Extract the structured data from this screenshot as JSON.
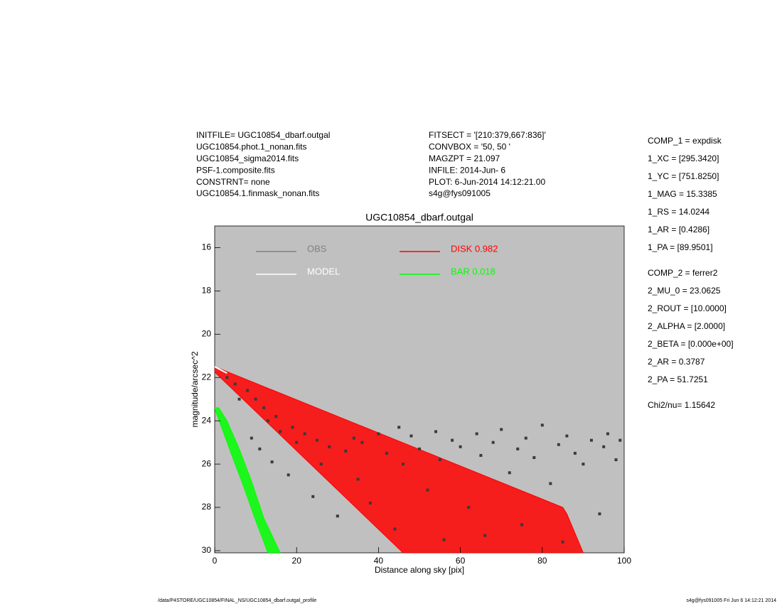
{
  "header": {
    "left": [
      "INITFILE= UGC10854_dbarf.outgal",
      "UGC10854.phot.1_nonan.fits",
      "UGC10854_sigma2014.fits",
      "PSF-1.composite.fits",
      "CONSTRNT= none",
      "UGC10854.1.finmask_nonan.fits"
    ],
    "middle": [
      "FITSECT = '[210:379,667:836]'",
      "CONVBOX = '50, 50  '",
      "MAGZPT =             21.097",
      "INFILE: 2014-Jun- 6",
      "PLOT:  6-Jun-2014 14:12:21.00",
      "s4g@fys091005"
    ]
  },
  "params": [
    [
      "COMP_1  = expdisk",
      "1_XC    = [295.3420]",
      "1_YC    = [751.8250]",
      "1_MAG   = 15.3385",
      "1_RS    = 14.0244",
      "1_AR    = [0.4286]",
      "1_PA    = [89.9501]"
    ],
    [
      "COMP_2  = ferrer2",
      "2_MU_0  = 23.0625",
      "2_ROUT  = [10.0000]",
      "2_ALPHA = [2.0000]",
      "2_BETA  = [0.000e+00]",
      "2_AR    = 0.3787",
      "2_PA    = 51.7251"
    ],
    [
      "Chi2/nu=      1.15642"
    ]
  ],
  "footer": {
    "left": "/data/P4STORE/UGC10854/FINAL_NS/UGC10854_dbarf.outgal_profile",
    "right": "s4g@fys091005  Fri Jun  6 14:12:21 2014"
  },
  "chart_data": {
    "type": "scatter",
    "title": "UGC10854_dbarf.outgal",
    "x_label": "Distance along sky [pix]",
    "y_label": "magnitude/arcsec^2",
    "xlim": [
      0,
      100
    ],
    "ylim": [
      15,
      30.1
    ],
    "y_inverted": true,
    "xticks": [
      0,
      20,
      40,
      60,
      80,
      100
    ],
    "yticks": [
      16,
      18,
      20,
      22,
      24,
      26,
      28,
      30
    ],
    "background": "#c0c0c0",
    "series": [
      {
        "name": "OBS",
        "color": "#808080",
        "marker_color": "#3a3a3a",
        "style": "points",
        "x": [
          3,
          5,
          6,
          8,
          9,
          10,
          11,
          12,
          13,
          14,
          15,
          16,
          18,
          19,
          20,
          22,
          24,
          25,
          26,
          28,
          30,
          32,
          34,
          35,
          36,
          38,
          40,
          42,
          44,
          45,
          46,
          48,
          50,
          52,
          54,
          55,
          56,
          58,
          60,
          62,
          64,
          65,
          66,
          68,
          70,
          72,
          74,
          75,
          76,
          78,
          80,
          82,
          84,
          85,
          86,
          88,
          90,
          92,
          94,
          95,
          96,
          98,
          99
        ],
        "values": [
          22.0,
          22.3,
          23.0,
          22.6,
          24.8,
          23.0,
          25.3,
          23.4,
          24.0,
          25.9,
          23.8,
          24.5,
          26.5,
          24.3,
          25.0,
          24.6,
          27.5,
          24.9,
          26.0,
          25.2,
          28.4,
          25.4,
          24.8,
          26.7,
          25.0,
          27.8,
          24.6,
          25.5,
          29.0,
          24.3,
          26.0,
          24.7,
          25.3,
          27.2,
          24.5,
          25.8,
          29.5,
          24.9,
          25.2,
          28.0,
          24.6,
          25.6,
          29.3,
          25.0,
          24.4,
          26.4,
          25.3,
          28.8,
          24.8,
          25.7,
          24.2,
          26.9,
          25.1,
          29.6,
          24.7,
          25.5,
          26.0,
          24.9,
          28.3,
          25.2,
          24.6,
          25.8,
          24.9
        ]
      },
      {
        "name": "MODEL",
        "color": "#ffffff",
        "style": "line",
        "x": [
          0,
          1,
          2,
          3
        ],
        "values": [
          21.5,
          21.6,
          21.7,
          21.8
        ]
      },
      {
        "name": "DISK  0.982",
        "color": "#ff0000",
        "style": "band",
        "x": [
          0,
          85,
          86,
          90,
          46,
          0
        ],
        "values": [
          21.5,
          28.0,
          28.3,
          30.1,
          30.1,
          21.75
        ]
      },
      {
        "name": "BAR  0.018",
        "color": "#00ff00",
        "style": "band",
        "x": [
          0,
          1,
          3,
          6,
          9,
          12,
          16,
          13,
          10,
          7,
          4,
          1.5,
          0.3
        ],
        "values": [
          23.4,
          23.4,
          24.0,
          25.3,
          26.8,
          28.5,
          30.1,
          30.1,
          28.6,
          27.0,
          25.5,
          24.2,
          23.6
        ]
      }
    ]
  }
}
